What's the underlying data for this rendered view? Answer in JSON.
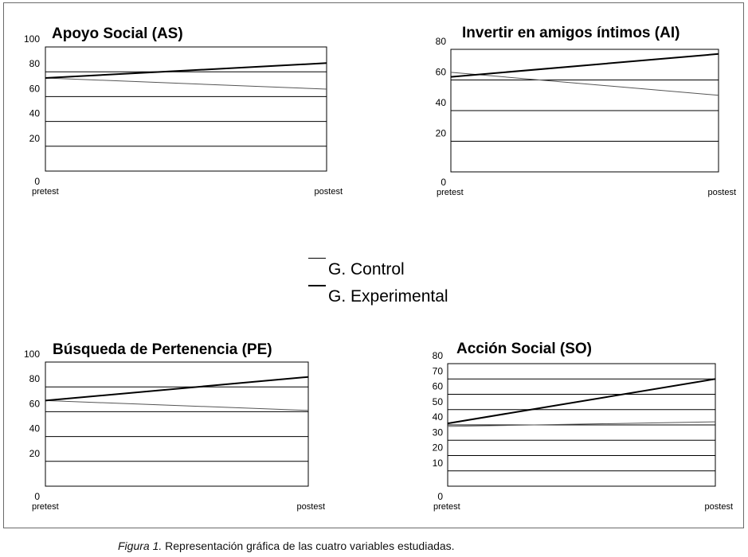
{
  "chart_data": [
    {
      "type": "line",
      "title": "Apoyo Social (AS)",
      "categories": [
        "pretest",
        "postest"
      ],
      "yticks": [
        "0",
        "20",
        "40",
        "60",
        "80",
        "100"
      ],
      "ylim": [
        0,
        100
      ],
      "grid": true,
      "series": [
        {
          "name": "G. Control",
          "values": [
            75,
            66
          ]
        },
        {
          "name": "G. Experimental",
          "values": [
            75,
            87
          ]
        }
      ]
    },
    {
      "type": "line",
      "title": "Invertir en amigos íntimos (AI)",
      "categories": [
        "pretest",
        "postest"
      ],
      "yticks": [
        "0",
        "20",
        "40",
        "60",
        "80"
      ],
      "ylim": [
        0,
        80
      ],
      "grid": true,
      "series": [
        {
          "name": "G. Control",
          "values": [
            65,
            50
          ]
        },
        {
          "name": "G. Experimental",
          "values": [
            62,
            77
          ]
        }
      ]
    },
    {
      "type": "line",
      "title": "Búsqueda de Pertenencia (PE)",
      "categories": [
        "pretest",
        "postest"
      ],
      "yticks": [
        "0",
        "20",
        "40",
        "60",
        "80",
        "100"
      ],
      "ylim": [
        0,
        100
      ],
      "grid": true,
      "series": [
        {
          "name": "G. Control",
          "values": [
            69,
            61
          ]
        },
        {
          "name": "G. Experimental",
          "values": [
            69,
            88
          ]
        }
      ]
    },
    {
      "type": "line",
      "title": "Acción Social (SO)",
      "categories": [
        "pretest",
        "postest"
      ],
      "yticks": [
        "0",
        "10",
        "20",
        "30",
        "40",
        "50",
        "60",
        "70",
        "80"
      ],
      "ylim": [
        0,
        80
      ],
      "grid": true,
      "series": [
        {
          "name": "G. Control",
          "values": [
            39,
            42
          ]
        },
        {
          "name": "G. Experimental",
          "values": [
            41,
            70
          ]
        }
      ]
    }
  ],
  "legend": {
    "items": [
      {
        "label": "G. Control"
      },
      {
        "label": "G. Experimental"
      }
    ]
  },
  "caption": {
    "prefix": "Figura 1.",
    "text": " Representación gráfica de las cuatro variables estudiadas."
  }
}
